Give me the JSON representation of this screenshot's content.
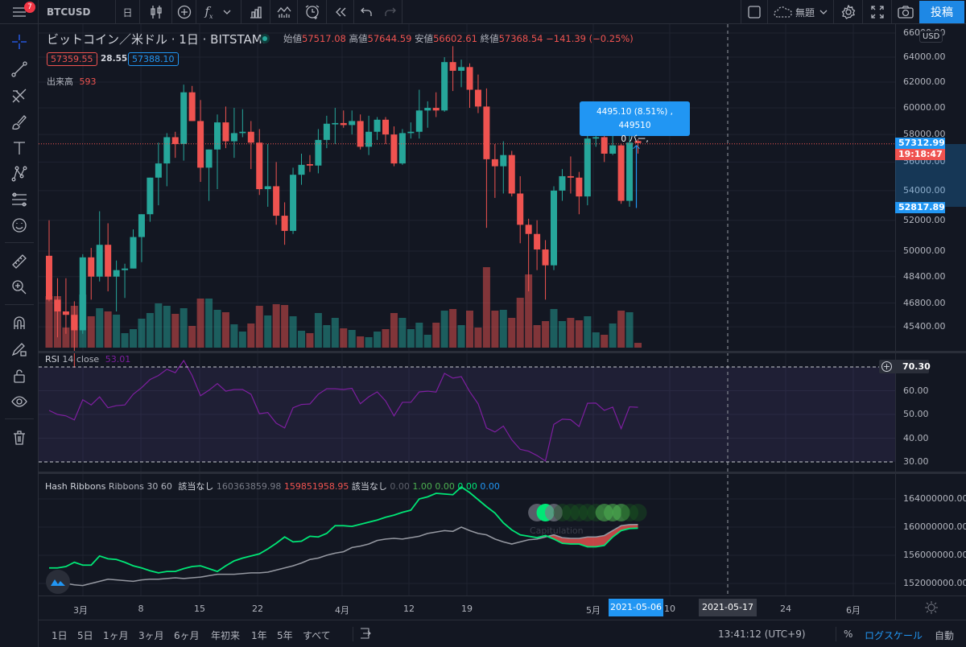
{
  "topbar": {
    "menu_badge": "7",
    "symbol": "BTCUSD",
    "interval": "日",
    "layout_name": "無題",
    "publish": "投稿"
  },
  "legend": {
    "title": "ビットコイン／米ドル · 1日 · BITSTAMP",
    "open_label": "始値",
    "open": "57517.08",
    "high_label": "高値",
    "high": "57644.59",
    "low_label": "安値",
    "low": "56602.61",
    "close_label": "終値",
    "close": "57368.54",
    "change": "−141.39 (−0.25%)",
    "bid": "57359.55",
    "spread": "28.55",
    "ask": "57388.10",
    "volume_label": "出来高",
    "volume": "593"
  },
  "price_axis": {
    "currency": "USD",
    "ticks": [
      "66000.00",
      "64000.00",
      "62000.00",
      "60000.00",
      "58000.00",
      "56000.00",
      "54000.00",
      "52000.00",
      "50000.00",
      "48400.00",
      "46800.00",
      "45400.00"
    ],
    "last_price": "57312.99",
    "countdown": "19:18:47",
    "measure_low": "52817.89"
  },
  "measure": {
    "line1": "4495.10 (8.51%) , 449510",
    "line2": "0 バー,"
  },
  "rsi": {
    "name": "RSI",
    "params": "14 close",
    "value": "53.01",
    "ticks": [
      "60.00",
      "50.00",
      "40.00",
      "30.00"
    ],
    "crosshair": "70.30",
    "upper": 70,
    "lower": 30
  },
  "hash": {
    "name": "Hash Ribbons",
    "params": "Ribbons 30 60",
    "na1": "該当なし",
    "v1": "160363859.98",
    "v2": "159851958.95",
    "na2": "該当なし",
    "v3": "0.00",
    "v4": "1.00",
    "v5": "0.00",
    "v6": "0.00",
    "v7": "0.00",
    "ticks": [
      "164000000.00",
      "160000000.00",
      "156000000.00",
      "152000000.00"
    ],
    "annotation": "Capitulation"
  },
  "time_axis": {
    "ticks": [
      "3月",
      "8",
      "15",
      "22",
      "4月",
      "12",
      "19",
      "5月",
      "10",
      "24",
      "6月"
    ],
    "selected": "2021-05-06",
    "crosshair": "2021-05-17"
  },
  "bottom": {
    "ranges": [
      "1日",
      "5日",
      "1ヶ月",
      "3ヶ月",
      "6ヶ月",
      "年初来",
      "1年",
      "5年",
      "すべて"
    ],
    "clock": "13:41:12 (UTC+9)",
    "percent": "%",
    "log": "ログスケール",
    "auto": "自動"
  },
  "colors": {
    "up": "#26a69a",
    "down": "#ef5350",
    "accent": "#2196f3",
    "rsi": "#7e1fa0",
    "fast": "#00e676",
    "slow": "#9598a1"
  },
  "chart_data": {
    "type": "candlestick",
    "columns": [
      "date",
      "open",
      "high",
      "low",
      "close",
      "volume"
    ],
    "candles": [
      [
        "2021-02-25",
        49700,
        52000,
        46900,
        47000,
        6400
      ],
      [
        "2021-02-26",
        47000,
        48300,
        44800,
        46300,
        6400
      ],
      [
        "2021-02-27",
        46300,
        48300,
        45000,
        46100,
        2500
      ],
      [
        "2021-02-28",
        46100,
        46900,
        43100,
        45200,
        5200
      ],
      [
        "2021-03-01",
        45200,
        49800,
        45000,
        49600,
        6600
      ],
      [
        "2021-03-02",
        49600,
        50200,
        47000,
        48400,
        3900
      ],
      [
        "2021-03-03",
        48400,
        52600,
        48100,
        50400,
        4900
      ],
      [
        "2021-03-04",
        50400,
        51800,
        47500,
        48400,
        4500
      ],
      [
        "2021-03-05",
        48400,
        49400,
        46300,
        48800,
        4100
      ],
      [
        "2021-03-06",
        48800,
        49200,
        47100,
        48900,
        1800
      ],
      [
        "2021-03-07",
        48900,
        51400,
        48900,
        50900,
        2300
      ],
      [
        "2021-03-08",
        50900,
        52400,
        49300,
        52400,
        3600
      ],
      [
        "2021-03-09",
        52400,
        54900,
        51900,
        54900,
        4300
      ],
      [
        "2021-03-10",
        54900,
        57400,
        53000,
        55900,
        5500
      ],
      [
        "2021-03-11",
        55900,
        58100,
        54300,
        57800,
        5200
      ],
      [
        "2021-03-12",
        57800,
        58200,
        56300,
        57300,
        4200
      ],
      [
        "2021-03-13",
        57300,
        61800,
        56100,
        61200,
        4900
      ],
      [
        "2021-03-14",
        61200,
        61700,
        59000,
        59000,
        2700
      ],
      [
        "2021-03-15",
        59000,
        60600,
        54600,
        55600,
        6100
      ],
      [
        "2021-03-16",
        55600,
        56900,
        53300,
        56900,
        6100
      ],
      [
        "2021-03-17",
        56900,
        59500,
        54100,
        58900,
        4700
      ],
      [
        "2021-03-18",
        58900,
        60100,
        57000,
        57500,
        4400
      ],
      [
        "2021-03-19",
        57500,
        60000,
        56300,
        58100,
        2900
      ],
      [
        "2021-03-20",
        58100,
        59900,
        57800,
        58200,
        2000
      ],
      [
        "2021-03-21",
        58200,
        59000,
        55500,
        57400,
        3000
      ],
      [
        "2021-03-22",
        57400,
        58400,
        53700,
        54100,
        5200
      ],
      [
        "2021-03-23",
        54100,
        57300,
        52900,
        54300,
        4000
      ],
      [
        "2021-03-24",
        54300,
        56000,
        51700,
        52300,
        5400
      ],
      [
        "2021-03-25",
        52300,
        53200,
        50400,
        51300,
        5300
      ],
      [
        "2021-03-26",
        51300,
        55600,
        51100,
        55100,
        3900
      ],
      [
        "2021-03-27",
        55100,
        56600,
        54400,
        55800,
        2100
      ],
      [
        "2021-03-28",
        55850,
        56500,
        55300,
        55750,
        1800
      ],
      [
        "2021-03-29",
        55750,
        58400,
        55200,
        57600,
        4300
      ],
      [
        "2021-03-30",
        57600,
        59400,
        57000,
        58800,
        2800
      ],
      [
        "2021-03-31",
        58750,
        60000,
        57300,
        58850,
        3700
      ],
      [
        "2021-04-01",
        58850,
        59800,
        58500,
        58700,
        2400
      ],
      [
        "2021-04-02",
        58700,
        59800,
        58000,
        59000,
        2200
      ],
      [
        "2021-04-03",
        59000,
        59500,
        56900,
        57100,
        1400
      ],
      [
        "2021-04-04",
        57100,
        59400,
        56500,
        58200,
        1300
      ],
      [
        "2021-04-05",
        58200,
        59300,
        57600,
        59100,
        2000
      ],
      [
        "2021-04-06",
        59100,
        59300,
        57300,
        58000,
        2300
      ],
      [
        "2021-04-07",
        58000,
        58600,
        55700,
        55900,
        4300
      ],
      [
        "2021-04-08",
        55900,
        58400,
        55800,
        58100,
        3700
      ],
      [
        "2021-04-09",
        58100,
        58900,
        57700,
        58200,
        2300
      ],
      [
        "2021-04-10",
        58200,
        61400,
        57700,
        59800,
        3100
      ],
      [
        "2021-04-11",
        59800,
        60500,
        58500,
        60000,
        1600
      ],
      [
        "2021-04-12",
        60000,
        61200,
        59300,
        59800,
        3100
      ],
      [
        "2021-04-13",
        59800,
        64000,
        59700,
        63600,
        4600
      ],
      [
        "2021-04-14",
        63600,
        64900,
        61300,
        62900,
        4800
      ],
      [
        "2021-04-15",
        62900,
        63800,
        61600,
        63200,
        2800
      ],
      [
        "2021-04-16",
        63200,
        63500,
        60000,
        61400,
        4600
      ],
      [
        "2021-04-17",
        61400,
        62600,
        59600,
        60100,
        2500
      ],
      [
        "2021-04-18",
        60100,
        61500,
        51500,
        56200,
        10000
      ],
      [
        "2021-04-19",
        56200,
        57300,
        53500,
        55700,
        4600
      ],
      [
        "2021-04-20",
        55700,
        57500,
        53800,
        56500,
        4700
      ],
      [
        "2021-04-21",
        56500,
        56800,
        53600,
        53800,
        3700
      ],
      [
        "2021-04-22",
        53800,
        55000,
        50500,
        51700,
        6200
      ],
      [
        "2021-04-23",
        51700,
        52100,
        47500,
        51100,
        9100
      ],
      [
        "2021-04-24",
        51100,
        52000,
        48800,
        50100,
        2800
      ],
      [
        "2021-04-25",
        50100,
        50700,
        47000,
        49100,
        3300
      ],
      [
        "2021-04-26",
        49100,
        54300,
        48800,
        54000,
        4800
      ],
      [
        "2021-04-27",
        54000,
        55500,
        53300,
        55000,
        3300
      ],
      [
        "2021-04-28",
        55000,
        56400,
        53800,
        54900,
        3700
      ],
      [
        "2021-04-29",
        54900,
        55300,
        52400,
        53600,
        3400
      ],
      [
        "2021-04-30",
        53600,
        58000,
        53000,
        57700,
        3900
      ],
      [
        "2021-05-01",
        57700,
        58500,
        57100,
        57800,
        1900
      ],
      [
        "2021-05-02",
        57800,
        58000,
        56000,
        56600,
        1600
      ],
      [
        "2021-05-03",
        56600,
        57900,
        56500,
        57200,
        3000
      ],
      [
        "2021-05-04",
        57200,
        57300,
        53100,
        53300,
        4600
      ],
      [
        "2021-05-05",
        53300,
        57900,
        52900,
        57400,
        4400
      ],
      [
        "2021-05-06",
        57517.08,
        57644.59,
        56602.61,
        57368.54,
        593
      ]
    ],
    "price_scale": "log",
    "current_price_line": 57312.99,
    "measure_range": [
      52817.89,
      57312.99
    ],
    "rsi": [
      51.7,
      50.0,
      49.4,
      47.7,
      56.2,
      54.0,
      57.4,
      52.8,
      53.7,
      54.0,
      58.5,
      61.3,
      64.7,
      66.4,
      69.0,
      67.6,
      72.7,
      66.4,
      57.9,
      60.2,
      63.0,
      59.8,
      60.5,
      60.5,
      58.5,
      50.3,
      50.8,
      46.3,
      44.3,
      52.8,
      54.2,
      54.4,
      58.5,
      60.8,
      60.8,
      60.5,
      61.0,
      54.5,
      57.4,
      59.5,
      55.7,
      49.4,
      55.1,
      55.1,
      59.5,
      59.8,
      59.4,
      67.3,
      65.3,
      65.9,
      59.6,
      54.5,
      44.3,
      42.6,
      45.1,
      39.3,
      35.3,
      34.5,
      32.7,
      30.4,
      45.8,
      48.0,
      47.8,
      44.9,
      54.7,
      54.8,
      51.7,
      53.1,
      44.0,
      53.2,
      53.01
    ],
    "hash_fast_millions": [
      154.2,
      154.2,
      154.4,
      155.0,
      154.6,
      154.6,
      155.9,
      155.5,
      155.4,
      155.0,
      154.5,
      154.2,
      153.8,
      153.5,
      153.7,
      153.7,
      154.1,
      154.4,
      154.5,
      154.1,
      153.7,
      154.5,
      155.2,
      155.6,
      155.9,
      156.2,
      156.9,
      157.7,
      158.6,
      157.9,
      158.0,
      158.7,
      158.6,
      159.1,
      160.2,
      160.2,
      160.1,
      160.4,
      160.7,
      161.0,
      161.4,
      161.7,
      162.1,
      162.4,
      164.0,
      164.3,
      164.8,
      164.7,
      164.6,
      165.7,
      164.9,
      163.9,
      162.9,
      162.0,
      160.6,
      159.6,
      158.9,
      158.7,
      158.5,
      158.8,
      158.3,
      157.7,
      157.6,
      157.6,
      157.2,
      157.2,
      157.4,
      158.6,
      159.5,
      159.8,
      159.85
    ],
    "hash_slow_millions": [
      151.8,
      151.9,
      152.0,
      151.8,
      151.7,
      152.0,
      152.3,
      152.6,
      152.5,
      152.4,
      152.3,
      152.5,
      152.6,
      152.6,
      152.7,
      152.8,
      152.7,
      152.8,
      152.9,
      153.1,
      153.3,
      153.3,
      153.3,
      153.4,
      153.5,
      153.5,
      153.6,
      153.9,
      154.2,
      154.5,
      154.9,
      155.4,
      155.6,
      156.0,
      156.3,
      156.5,
      157.1,
      157.3,
      157.6,
      158.1,
      158.3,
      158.4,
      158.3,
      158.5,
      158.7,
      159.1,
      159.3,
      159.5,
      159.4,
      160.0,
      159.5,
      159.1,
      158.9,
      158.3,
      157.9,
      157.6,
      157.9,
      158.2,
      158.3,
      158.6,
      158.9,
      158.5,
      158.4,
      158.4,
      158.6,
      158.6,
      158.8,
      159.5,
      160.2,
      160.35,
      160.36
    ],
    "hash_signals": {
      "2021-04-24": "gray",
      "2021-04-25": "bright",
      "2021-04-26": "gray",
      "2021-04-27": "dim",
      "2021-04-28": "dim",
      "2021-04-29": "dim",
      "2021-04-30": "dim",
      "2021-05-01": "dim",
      "2021-05-02": "green",
      "2021-05-03": "green",
      "2021-05-04": "green",
      "2021-05-05": "dim",
      "2021-05-06": "dim"
    }
  }
}
